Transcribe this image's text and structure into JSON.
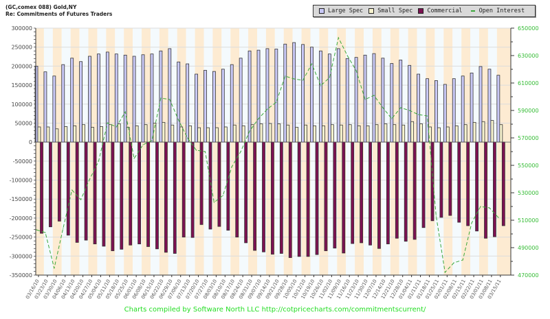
{
  "header": {
    "title_line1": "(GC,comex 088) Gold,NY",
    "title_line2": "Re: Commitments of Futures Traders"
  },
  "footer": {
    "credit": "Charts compiled by Software North LLC  http://cotpricecharts.com/commitmentscurrent/"
  },
  "colors": {
    "large_spec": "#c9c9f7",
    "small_spec": "#f7f3cf",
    "commercial": "#7d1152",
    "open_interest": "#3aa83a",
    "stripe_a": "#fdebd2",
    "stripe_b": "#f4fafd",
    "grid": "#dcdcdc",
    "right_axis_text": "#33bb33"
  },
  "chart_data": {
    "type": "bar",
    "title": "Commitments of Futures Traders - Gold",
    "legend": [
      "Large Spec",
      "Small Spec",
      "Commercial",
      "Open Interest"
    ],
    "legend_position": "top-right",
    "left_axis": {
      "ylim": [
        -350000,
        300000
      ],
      "ticks": [
        "300000",
        "250000",
        "200000",
        "150000",
        "100000",
        "50000",
        "0",
        "-50000",
        "-100000",
        "-150000",
        "-200000",
        "-250000",
        "-300000",
        "-350000"
      ]
    },
    "right_axis": {
      "ylim": [
        470000,
        650000
      ],
      "ticks": [
        "650000",
        "630000",
        "610000",
        "590000",
        "570000",
        "550000",
        "530000",
        "510000",
        "490000",
        "470000"
      ]
    },
    "grid": true,
    "categories": [
      "03/16/10",
      "03/23/10",
      "03/30/10",
      "04/06/10",
      "04/13/10",
      "04/20/10",
      "04/27/10",
      "05/04/10",
      "05/11/10",
      "05/18/10",
      "05/25/10",
      "06/01/10",
      "06/08/10",
      "06/15/10",
      "06/22/10",
      "06/29/10",
      "07/06/10",
      "07/13/10",
      "07/20/10",
      "07/27/10",
      "08/03/10",
      "08/10/10",
      "08/17/10",
      "08/24/10",
      "08/31/10",
      "09/07/10",
      "09/14/10",
      "09/21/10",
      "09/28/10",
      "10/05/10",
      "10/12/10",
      "10/19/10",
      "10/26/10",
      "11/02/10",
      "11/09/10",
      "11/16/10",
      "11/23/10",
      "11/30/10",
      "12/07/10",
      "12/14/10",
      "12/21/10",
      "12/28/10",
      "01/04/11",
      "01/11/11",
      "01/18/11",
      "01/25/11",
      "02/01/11",
      "02/08/11",
      "02/15/11",
      "02/22/11",
      "03/01/11",
      "03/08/11",
      "03/15/11"
    ],
    "series": [
      {
        "name": "Large Spec",
        "axis": "left",
        "values": [
          200000,
          185000,
          174000,
          204000,
          221000,
          212000,
          226000,
          232000,
          237000,
          232000,
          229000,
          226000,
          230000,
          232000,
          240000,
          246000,
          211000,
          206000,
          179000,
          189000,
          186000,
          192000,
          204000,
          221000,
          240000,
          242000,
          246000,
          245000,
          258000,
          262000,
          257000,
          250000,
          240000,
          232000,
          246000,
          220000,
          223000,
          229000,
          233000,
          221000,
          207000,
          216000,
          202000,
          179000,
          167000,
          162000,
          152000,
          167000,
          174000,
          182000,
          199000,
          192000,
          176000
        ]
      },
      {
        "name": "Small Spec",
        "axis": "left",
        "values": [
          40000,
          40000,
          35000,
          41000,
          43000,
          46000,
          39000,
          41000,
          46000,
          48000,
          39000,
          43000,
          46000,
          50000,
          52000,
          45000,
          40000,
          43000,
          38000,
          38000,
          38000,
          40000,
          45000,
          43000,
          46000,
          48000,
          49000,
          48000,
          45000,
          39000,
          45000,
          43000,
          43000,
          46000,
          45000,
          46000,
          43000,
          43000,
          46000,
          48000,
          46000,
          45000,
          54000,
          48000,
          40000,
          38000,
          40000,
          43000,
          46000,
          52000,
          54000,
          57000,
          46000
        ]
      },
      {
        "name": "Commercial",
        "axis": "left",
        "values": [
          -240000,
          -223000,
          -208000,
          -245000,
          -264000,
          -258000,
          -268000,
          -274000,
          -286000,
          -282000,
          -271000,
          -268000,
          -275000,
          -281000,
          -290000,
          -293000,
          -250000,
          -251000,
          -217000,
          -229000,
          -222000,
          -232000,
          -250000,
          -265000,
          -285000,
          -289000,
          -295000,
          -293000,
          -304000,
          -301000,
          -301000,
          -296000,
          -286000,
          -279000,
          -292000,
          -267000,
          -265000,
          -271000,
          -280000,
          -268000,
          -253000,
          -261000,
          -256000,
          -225000,
          -207000,
          -198000,
          -193000,
          -211000,
          -220000,
          -234000,
          -253000,
          -249000,
          -220000
        ]
      },
      {
        "name": "Open Interest",
        "axis": "right",
        "type": "line",
        "values": [
          503000,
          501000,
          475000,
          504000,
          532000,
          525000,
          540000,
          553000,
          581000,
          578000,
          589000,
          555000,
          565000,
          568000,
          599000,
          598000,
          583000,
          570000,
          561000,
          560000,
          523000,
          528000,
          549000,
          560000,
          575000,
          584000,
          591000,
          596000,
          615000,
          613000,
          612000,
          624000,
          608000,
          614000,
          643000,
          630000,
          619000,
          598000,
          601000,
          592000,
          584000,
          592000,
          590000,
          587000,
          586000,
          513000,
          472000,
          479000,
          481000,
          508000,
          520000,
          519000,
          512000
        ]
      }
    ]
  }
}
